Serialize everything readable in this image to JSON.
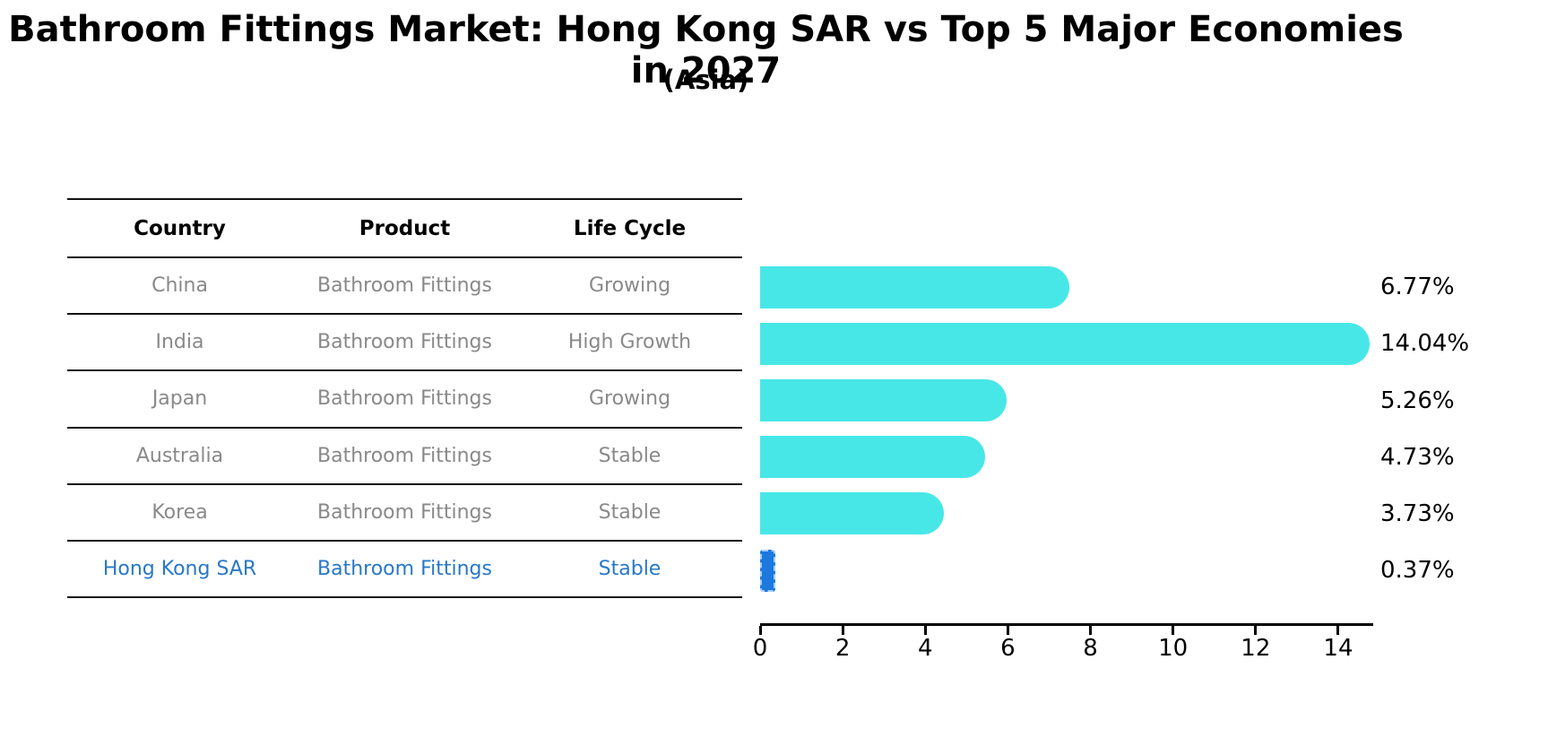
{
  "header": {
    "title": "Bathroom Fittings Market: Hong Kong SAR vs Top 5 Major Economies in 2027",
    "subtitle": "(Asia)"
  },
  "table": {
    "columns": [
      "Country",
      "Product",
      "Life Cycle"
    ],
    "rows": [
      {
        "country": "China",
        "product": "Bathroom Fittings",
        "life_cycle": "Growing",
        "highlight": false
      },
      {
        "country": "India",
        "product": "Bathroom Fittings",
        "life_cycle": "High Growth",
        "highlight": false
      },
      {
        "country": "Japan",
        "product": "Bathroom Fittings",
        "life_cycle": "Growing",
        "highlight": false
      },
      {
        "country": "Australia",
        "product": "Bathroom Fittings",
        "life_cycle": "Stable",
        "highlight": false
      },
      {
        "country": "Korea",
        "product": "Bathroom Fittings",
        "life_cycle": "Stable",
        "highlight": false
      },
      {
        "country": "Hong Kong SAR",
        "product": "Bathroom Fittings",
        "life_cycle": "Stable",
        "highlight": true
      }
    ]
  },
  "chart_data": {
    "type": "bar",
    "orientation": "horizontal",
    "title": "Bathroom Fittings Market: Hong Kong SAR vs Top 5 Major Economies in 2027 (Asia)",
    "categories": [
      "China",
      "India",
      "Japan",
      "Australia",
      "Korea",
      "Hong Kong SAR"
    ],
    "values": [
      6.77,
      14.04,
      5.26,
      4.73,
      3.73,
      0.37
    ],
    "value_labels": [
      "6.77%",
      "14.04%",
      "5.26%",
      "4.73%",
      "3.73%",
      "0.37%"
    ],
    "value_suffix": "%",
    "x_ticks": [
      0,
      2,
      4,
      6,
      8,
      10,
      12,
      14
    ],
    "xlim": [
      0,
      14.85
    ],
    "grid": false,
    "legend": false,
    "bar_color": "#48E7E7",
    "highlight_bar_color": "#1C79DD",
    "highlight_index": 5
  },
  "colors": {
    "text_default": "#000000",
    "text_muted": "#898989",
    "text_highlight": "#2878C8",
    "axis": "#000000"
  }
}
